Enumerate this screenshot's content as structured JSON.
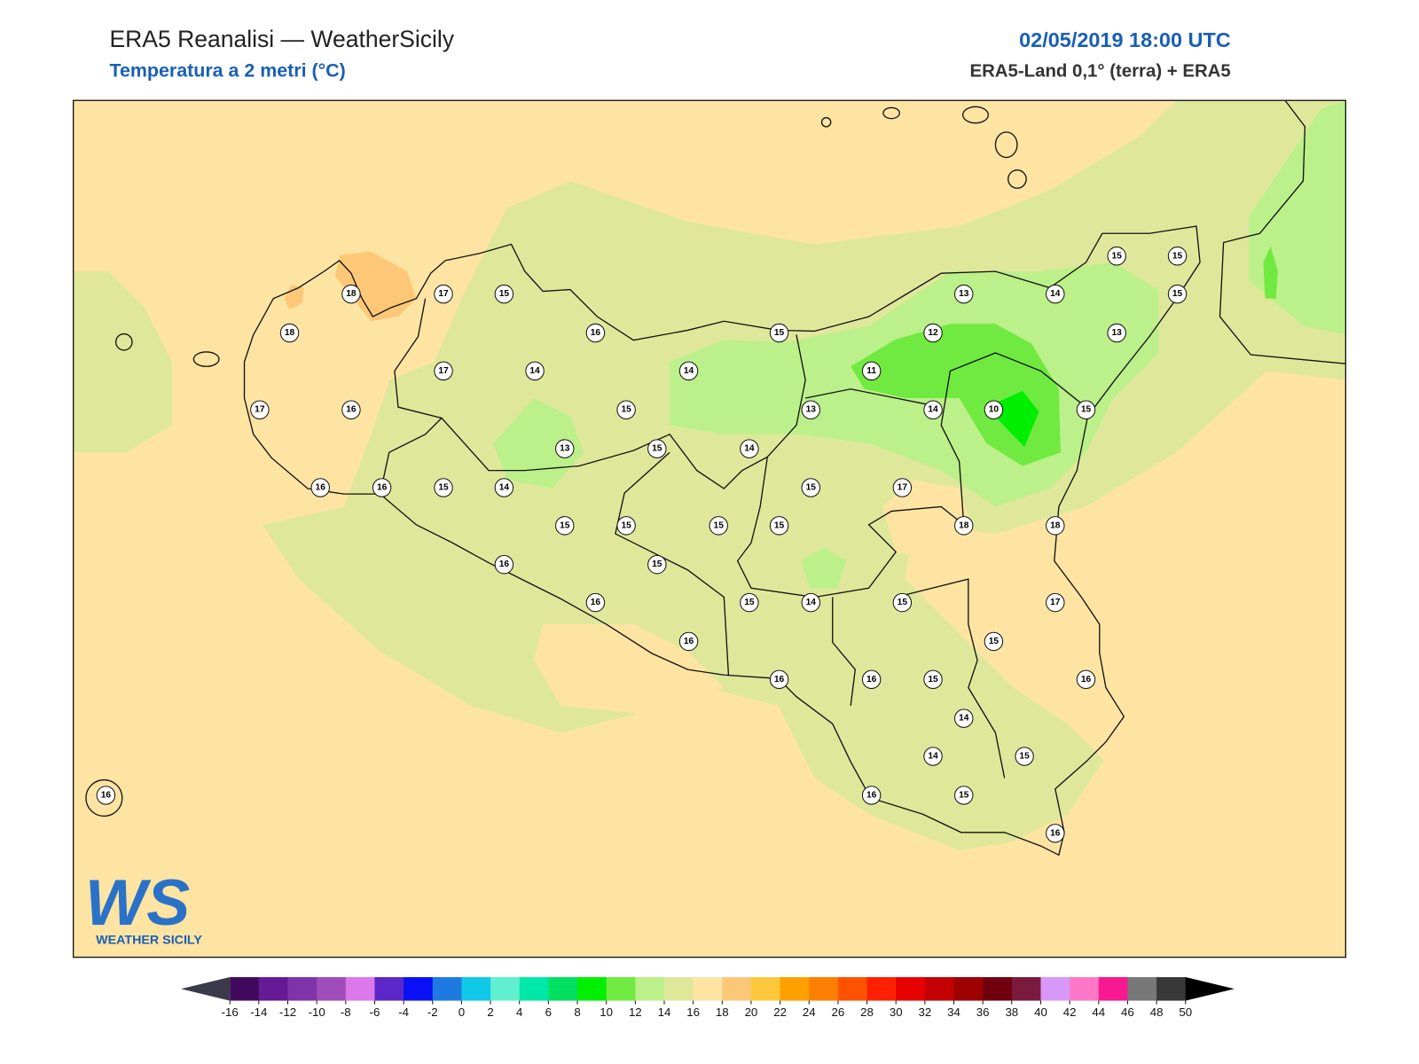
{
  "header": {
    "title": "ERA5 Reanalisi — WeatherSicily",
    "subtitle": "Temperatura a 2 metri (°C)",
    "datetime": "02/05/2019 18:00 UTC",
    "source": "ERA5-Land 0,1° (terra) + ERA5"
  },
  "stations": [
    18,
    17,
    15,
    18,
    17,
    14,
    16,
    14,
    15,
    17,
    16,
    15,
    13,
    15,
    14,
    13,
    11,
    12,
    13,
    14,
    15,
    15,
    15,
    13,
    14,
    10,
    15,
    16,
    16,
    15,
    14,
    15,
    15,
    15,
    15,
    15,
    17,
    18,
    18,
    16,
    15,
    16,
    15,
    14,
    15,
    17,
    16,
    15,
    16,
    16,
    15,
    16,
    14,
    14,
    15,
    16,
    15,
    16,
    16
  ],
  "colorbar": {
    "ticks": [
      -16,
      -14,
      -12,
      -10,
      -8,
      -6,
      -4,
      -2,
      0,
      2,
      4,
      6,
      8,
      10,
      12,
      14,
      16,
      18,
      20,
      22,
      24,
      26,
      28,
      30,
      32,
      34,
      36,
      38,
      40,
      42,
      44,
      46,
      48,
      50
    ],
    "colors": [
      "#420a5f",
      "#661b96",
      "#8033a8",
      "#a04dbb",
      "#dc78ea",
      "#5a28c8",
      "#0a10f5",
      "#1e7ae0",
      "#10c8e8",
      "#60f0d0",
      "#00e8a8",
      "#00e060",
      "#00ee00",
      "#70ea40",
      "#bcf08a",
      "#dfe89a",
      "#fee4a2",
      "#fcc878",
      "#fec83c",
      "#fea000",
      "#fd7f00",
      "#fe5200",
      "#fe2000",
      "#e60000",
      "#c40000",
      "#9e0000",
      "#700010",
      "#7a1a3c",
      "#d898f8",
      "#ff78c8",
      "#f81890",
      "#787878",
      "#383838"
    ],
    "under_color": "#3a3a4a",
    "over_color": "#000000"
  },
  "logo": {
    "mark": "WS",
    "name": "WEATHER SICILY"
  }
}
